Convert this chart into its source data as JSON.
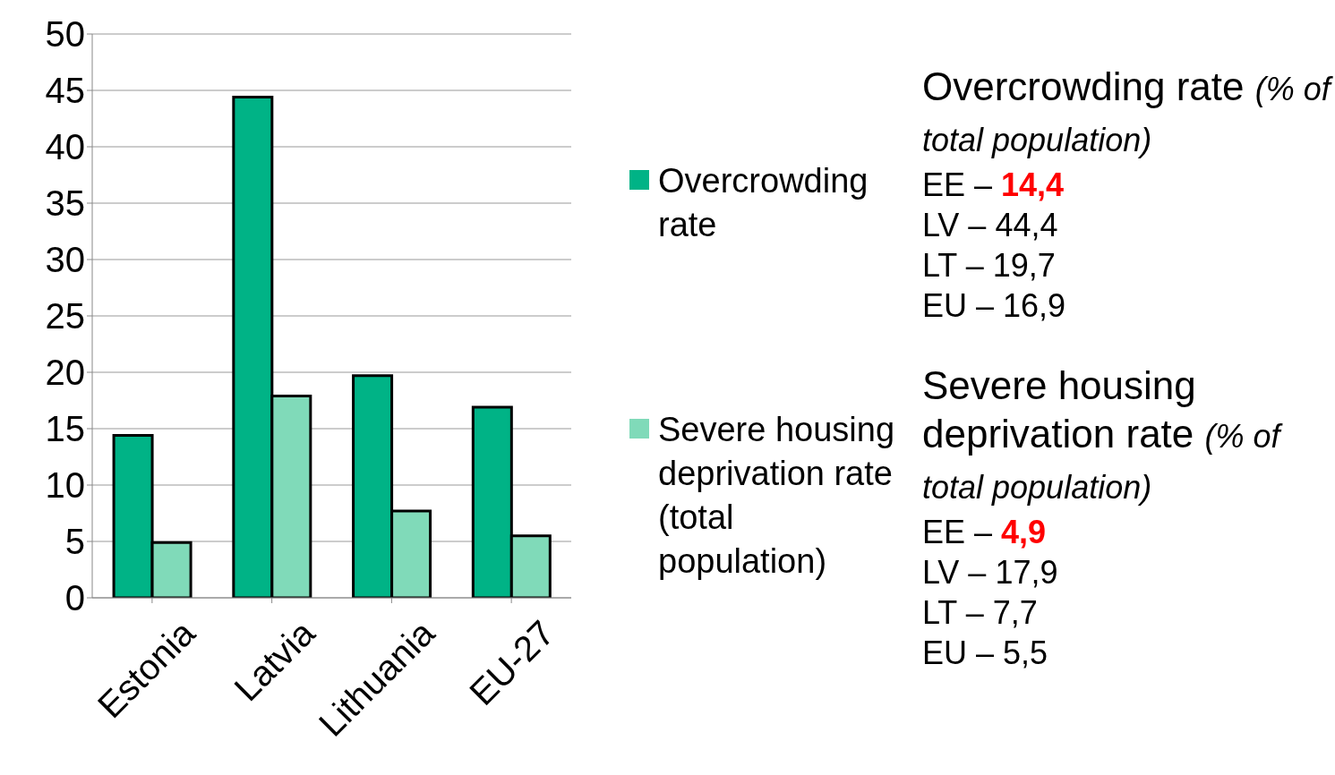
{
  "chart_data": {
    "type": "bar",
    "categories": [
      "Estonia",
      "Latvia",
      "Lithuania",
      "EU-27"
    ],
    "series": [
      {
        "name": "Overcrowding rate",
        "color": "#00b386",
        "values": [
          14.4,
          44.4,
          19.7,
          16.9
        ]
      },
      {
        "name": "Severe housing deprivation rate (total population)",
        "color": "#80dab9",
        "values": [
          4.9,
          17.9,
          7.7,
          5.5
        ]
      }
    ],
    "ylim": [
      0,
      50
    ],
    "yticks": [
      0,
      5,
      10,
      15,
      20,
      25,
      30,
      35,
      40,
      45,
      50
    ],
    "grid": "y",
    "legend": "right",
    "annotations": [
      "Overcrowding rate (% of total population)",
      "EE – 14,4",
      "LV – 44,4",
      "LT – 19,7",
      "EU – 16,9",
      "Severe housing deprivation rate (% of total population)",
      "EE – 4,9",
      "LV – 17,9",
      "LT – 7,7",
      "EU – 5,5"
    ]
  }
}
